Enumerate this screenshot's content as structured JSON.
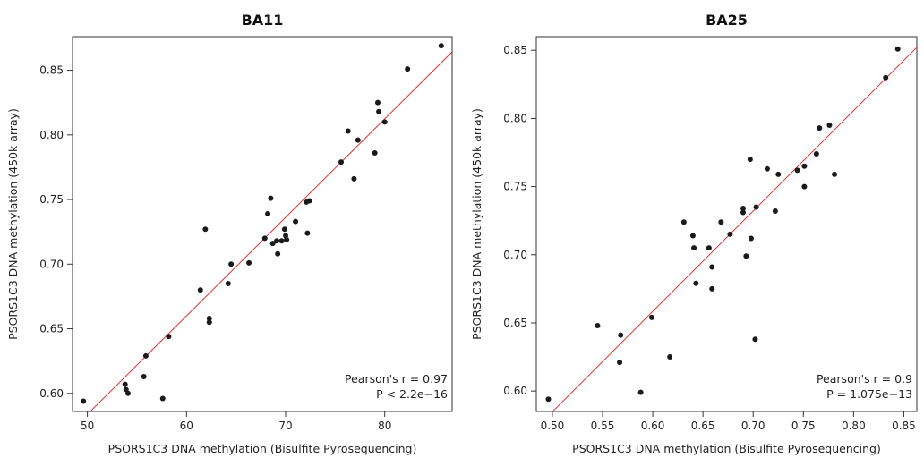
{
  "chart_data": [
    {
      "type": "scatter",
      "title": "BA11",
      "xlabel": "PSORS1C3 DNA methylation (Bisulfite Pyrosequencing)",
      "ylabel": "PSORS1C3 DNA methylation (450k array)",
      "xlim": [
        48.5,
        86.8
      ],
      "ylim": [
        0.586,
        0.876
      ],
      "xticks": [
        50,
        60,
        70,
        80
      ],
      "xtick_labels": [
        "50",
        "60",
        "70",
        "80"
      ],
      "yticks": [
        0.6,
        0.65,
        0.7,
        0.75,
        0.8,
        0.85
      ],
      "ytick_labels": [
        "0.60",
        "0.65",
        "0.70",
        "0.75",
        "0.80",
        "0.85"
      ],
      "grid": false,
      "fit_line": {
        "slope": 0.00762,
        "intercept": 0.2028
      },
      "annotations": [
        "Pearson's r = 0.97",
        "P < 2.2e−16"
      ],
      "points": [
        {
          "x": 49.6,
          "y": 0.594
        },
        {
          "x": 53.8,
          "y": 0.607
        },
        {
          "x": 53.9,
          "y": 0.603
        },
        {
          "x": 54.1,
          "y": 0.6
        },
        {
          "x": 55.7,
          "y": 0.613
        },
        {
          "x": 55.9,
          "y": 0.629
        },
        {
          "x": 57.6,
          "y": 0.596
        },
        {
          "x": 58.2,
          "y": 0.644
        },
        {
          "x": 61.4,
          "y": 0.68
        },
        {
          "x": 61.9,
          "y": 0.727
        },
        {
          "x": 62.3,
          "y": 0.658
        },
        {
          "x": 62.3,
          "y": 0.655
        },
        {
          "x": 64.2,
          "y": 0.685
        },
        {
          "x": 64.5,
          "y": 0.7
        },
        {
          "x": 66.3,
          "y": 0.701
        },
        {
          "x": 67.9,
          "y": 0.72
        },
        {
          "x": 68.2,
          "y": 0.739
        },
        {
          "x": 68.5,
          "y": 0.751
        },
        {
          "x": 68.7,
          "y": 0.716
        },
        {
          "x": 69.1,
          "y": 0.718
        },
        {
          "x": 69.2,
          "y": 0.708
        },
        {
          "x": 69.6,
          "y": 0.718
        },
        {
          "x": 69.9,
          "y": 0.727
        },
        {
          "x": 70.0,
          "y": 0.722
        },
        {
          "x": 70.1,
          "y": 0.719
        },
        {
          "x": 71.0,
          "y": 0.733
        },
        {
          "x": 72.1,
          "y": 0.748
        },
        {
          "x": 72.4,
          "y": 0.749
        },
        {
          "x": 72.2,
          "y": 0.724
        },
        {
          "x": 75.6,
          "y": 0.779
        },
        {
          "x": 76.3,
          "y": 0.803
        },
        {
          "x": 76.9,
          "y": 0.766
        },
        {
          "x": 77.3,
          "y": 0.796
        },
        {
          "x": 79.0,
          "y": 0.786
        },
        {
          "x": 79.3,
          "y": 0.825
        },
        {
          "x": 79.4,
          "y": 0.818
        },
        {
          "x": 80.0,
          "y": 0.81
        },
        {
          "x": 82.3,
          "y": 0.851
        },
        {
          "x": 85.7,
          "y": 0.869
        }
      ]
    },
    {
      "type": "scatter",
      "title": "BA25",
      "xlabel": "PSORS1C3 DNA methylation (Bisulfite Pyrosequencing)",
      "ylabel": "PSORS1C3 DNA methylation (450k array)",
      "xlim": [
        0.484,
        0.863
      ],
      "ylim": [
        0.585,
        0.86
      ],
      "xticks": [
        0.5,
        0.55,
        0.6,
        0.65,
        0.7,
        0.75,
        0.8,
        0.85
      ],
      "xtick_labels": [
        "0.50",
        "0.55",
        "0.60",
        "0.65",
        "0.70",
        "0.75",
        "0.80",
        "0.85"
      ],
      "yticks": [
        0.6,
        0.65,
        0.7,
        0.75,
        0.8,
        0.85
      ],
      "ytick_labels": [
        "0.60",
        "0.65",
        "0.70",
        "0.75",
        "0.80",
        "0.85"
      ],
      "grid": false,
      "fit_line": {
        "slope": 0.7367,
        "intercept": 0.2164
      },
      "annotations": [
        "Pearson's r = 0.9",
        "P = 1.075e−13"
      ],
      "points": [
        {
          "x": 0.496,
          "y": 0.594
        },
        {
          "x": 0.545,
          "y": 0.648
        },
        {
          "x": 0.568,
          "y": 0.641
        },
        {
          "x": 0.567,
          "y": 0.621
        },
        {
          "x": 0.588,
          "y": 0.599
        },
        {
          "x": 0.599,
          "y": 0.654
        },
        {
          "x": 0.617,
          "y": 0.625
        },
        {
          "x": 0.631,
          "y": 0.724
        },
        {
          "x": 0.64,
          "y": 0.714
        },
        {
          "x": 0.641,
          "y": 0.705
        },
        {
          "x": 0.643,
          "y": 0.679
        },
        {
          "x": 0.656,
          "y": 0.705
        },
        {
          "x": 0.659,
          "y": 0.691
        },
        {
          "x": 0.659,
          "y": 0.675
        },
        {
          "x": 0.668,
          "y": 0.724
        },
        {
          "x": 0.677,
          "y": 0.715
        },
        {
          "x": 0.69,
          "y": 0.734
        },
        {
          "x": 0.69,
          "y": 0.731
        },
        {
          "x": 0.693,
          "y": 0.699
        },
        {
          "x": 0.697,
          "y": 0.77
        },
        {
          "x": 0.698,
          "y": 0.712
        },
        {
          "x": 0.702,
          "y": 0.638
        },
        {
          "x": 0.703,
          "y": 0.735
        },
        {
          "x": 0.714,
          "y": 0.763
        },
        {
          "x": 0.722,
          "y": 0.732
        },
        {
          "x": 0.725,
          "y": 0.759
        },
        {
          "x": 0.744,
          "y": 0.762
        },
        {
          "x": 0.751,
          "y": 0.765
        },
        {
          "x": 0.751,
          "y": 0.75
        },
        {
          "x": 0.763,
          "y": 0.774
        },
        {
          "x": 0.766,
          "y": 0.793
        },
        {
          "x": 0.776,
          "y": 0.795
        },
        {
          "x": 0.781,
          "y": 0.759
        },
        {
          "x": 0.832,
          "y": 0.83
        },
        {
          "x": 0.844,
          "y": 0.851
        }
      ]
    }
  ]
}
